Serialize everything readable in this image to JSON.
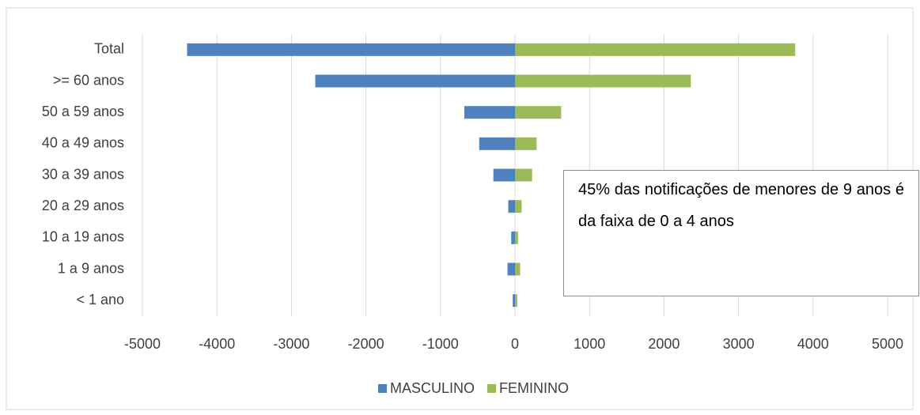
{
  "chart_data": {
    "type": "bar",
    "orientation": "horizontal",
    "categories": [
      "Total",
      ">= 60 anos",
      "50 a 59 anos",
      "40 a 49 anos",
      "30 a 39 anos",
      "20 a 29 anos",
      "10 a 19 anos",
      "1 a 9 anos",
      "< 1 ano"
    ],
    "series": [
      {
        "name": "MASCULINO",
        "color": "#4f81bd",
        "values": [
          -4400,
          -2680,
          -680,
          -480,
          -290,
          -90,
          -50,
          -100,
          -30
        ]
      },
      {
        "name": "FEMININO",
        "color": "#9bbb59",
        "values": [
          3760,
          2360,
          620,
          290,
          230,
          90,
          40,
          70,
          30
        ]
      }
    ],
    "xlim": [
      -5000,
      5000
    ],
    "xticks": [
      -5000,
      -4000,
      -3000,
      -2000,
      -1000,
      0,
      1000,
      2000,
      3000,
      4000,
      5000
    ],
    "grid": true,
    "legend": "bottom",
    "annotation": "45% das notificações de menores de 9 anos é da faixa de 0 a 4 anos"
  }
}
